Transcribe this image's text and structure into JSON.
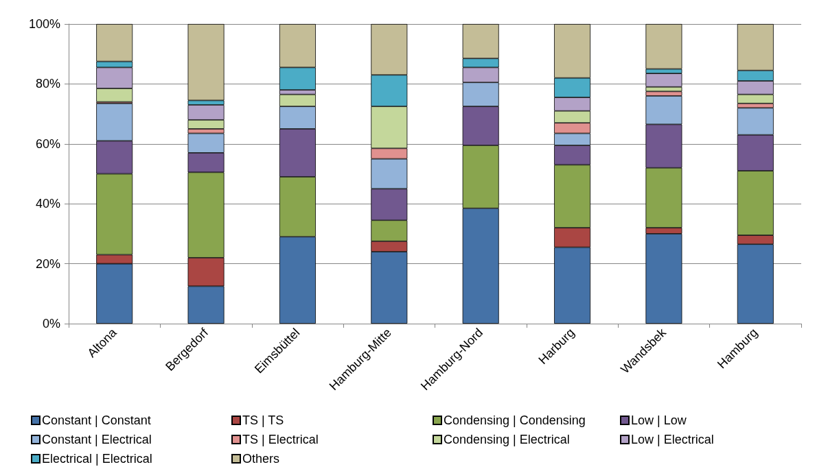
{
  "chart_data": {
    "type": "bar",
    "stacked": true,
    "categories": [
      "Altona",
      "Bergedorf",
      "Eimsbüttel",
      "Hamburg-Mitte",
      "Hamburg-Nord",
      "Harburg",
      "Wandsbek",
      "Hamburg"
    ],
    "series": [
      {
        "name": "Constant | Constant",
        "color": "#4572a7",
        "values": [
          20,
          12.5,
          29,
          24,
          38.5,
          25.5,
          30,
          26.5
        ]
      },
      {
        "name": "TS | TS",
        "color": "#aa4643",
        "values": [
          3,
          9.5,
          0,
          3.5,
          0,
          6.5,
          2,
          3
        ]
      },
      {
        "name": "Condensing | Condensing",
        "color": "#89a54e",
        "values": [
          27,
          28.5,
          20,
          7,
          21,
          21,
          20,
          21.5
        ]
      },
      {
        "name": "Low | Low",
        "color": "#71588f",
        "values": [
          11,
          6.5,
          16,
          10.5,
          13,
          6.5,
          14.5,
          12
        ]
      },
      {
        "name": "Constant | Electrical",
        "color": "#93b3d9",
        "values": [
          12.5,
          6.5,
          7.5,
          10,
          8,
          4,
          9.5,
          9
        ]
      },
      {
        "name": "TS | Electrical",
        "color": "#e0918f",
        "values": [
          0.5,
          1.5,
          0,
          3.5,
          0,
          3.5,
          1.5,
          1.5
        ]
      },
      {
        "name": "Condensing | Electrical",
        "color": "#c4d79b",
        "values": [
          4.5,
          3,
          4,
          14,
          0,
          4,
          1.5,
          3
        ]
      },
      {
        "name": "Low | Electrical",
        "color": "#b3a2c7",
        "values": [
          7,
          5,
          1.5,
          0,
          5,
          4.5,
          4.5,
          4.5
        ]
      },
      {
        "name": "Electrical | Electrical",
        "color": "#4bacc6",
        "values": [
          2,
          1.5,
          7.5,
          10.5,
          3,
          6.5,
          1.5,
          3.5
        ]
      },
      {
        "name": "Others",
        "color": "#c4bd97",
        "values": [
          12.5,
          25.5,
          14.5,
          17,
          11.5,
          18,
          15,
          15.5
        ]
      }
    ],
    "ylim": [
      0,
      100
    ],
    "yticks": [
      {
        "value": 0,
        "label": "0%"
      },
      {
        "value": 20,
        "label": "20%"
      },
      {
        "value": 40,
        "label": "40%"
      },
      {
        "value": 60,
        "label": "60%"
      },
      {
        "value": 80,
        "label": "80%"
      },
      {
        "value": 100,
        "label": "100%"
      }
    ],
    "grid": "y",
    "legend": "bottom"
  }
}
